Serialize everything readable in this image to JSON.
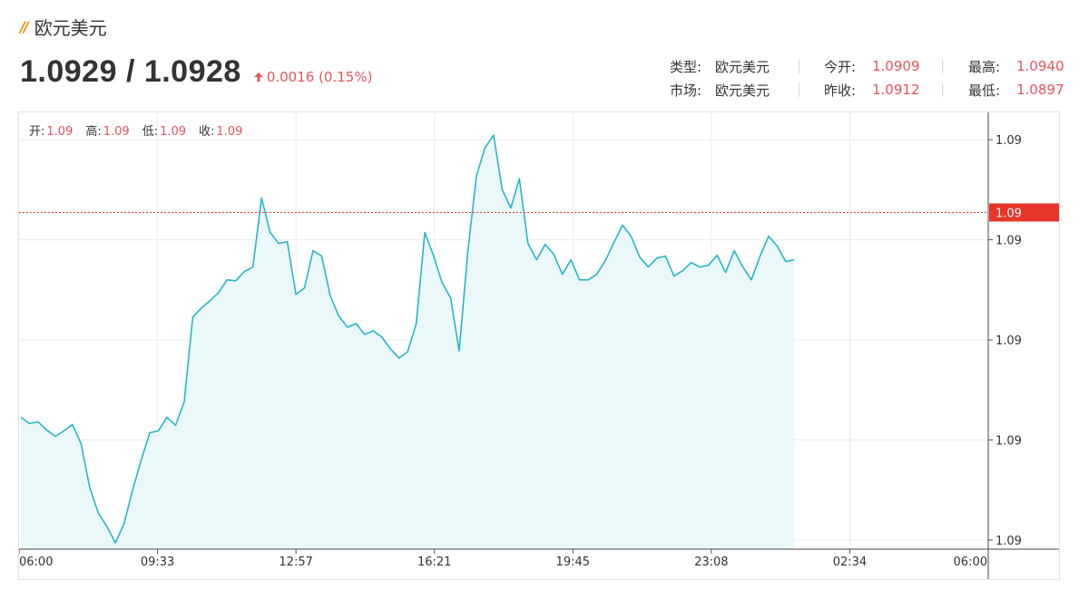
{
  "header": {
    "title": "欧元美元",
    "price": "1.0929 / 1.0928",
    "change": "0.0016 (0.15%)"
  },
  "info": {
    "type_label": "类型:",
    "type_value": "欧元美元",
    "market_label": "市场:",
    "market_value": "欧元美元",
    "open_label": "今开:",
    "open_value": "1.0909",
    "prevclose_label": "昨收:",
    "prevclose_value": "1.0912",
    "high_label": "最高:",
    "high_value": "1.0940",
    "low_label": "最低:",
    "low_value": "1.0897"
  },
  "ohlc": {
    "open_label": "开:",
    "open_value": "1.09",
    "high_label": "高:",
    "high_value": "1.09",
    "low_label": "低:",
    "low_value": "1.09",
    "close_label": "收:",
    "close_value": "1.09"
  },
  "colors": {
    "line": "#27b5c8",
    "fill": "#eaf8fa",
    "current": "#e8352b",
    "up": "#e8535b"
  },
  "chart_data": {
    "type": "area",
    "x_tick_labels": [
      "06:00",
      "09:33",
      "12:57",
      "16:21",
      "19:45",
      "23:08",
      "02:34",
      "06:00"
    ],
    "y_tick_labels": [
      "1.09",
      "1.09",
      "1.09",
      "1.09",
      "1.09"
    ],
    "y_ticks": [
      1.0936,
      1.0925,
      1.0914,
      1.0903,
      1.0892
    ],
    "ylim": [
      1.0891,
      1.0939
    ],
    "current_value": 1.0928,
    "current_label": "1.09",
    "series": [
      {
        "x": [
          0,
          1,
          2,
          3,
          4,
          5,
          6,
          7,
          8,
          9,
          10,
          11,
          12,
          13,
          14,
          15,
          16,
          17,
          18,
          19,
          20,
          21,
          22,
          23,
          24,
          25,
          26,
          27,
          28,
          29,
          30,
          31,
          32,
          33,
          34,
          35,
          36,
          37,
          38,
          39,
          40,
          41,
          42,
          43,
          44,
          45,
          46,
          47,
          48,
          49,
          50,
          51,
          52,
          53,
          54,
          55,
          56,
          57,
          58,
          59,
          60,
          61,
          62,
          63,
          64,
          65,
          66,
          67,
          68,
          69,
          70,
          71,
          72,
          73,
          74,
          75,
          76,
          77,
          78,
          79,
          80,
          81,
          82,
          83,
          84,
          85,
          86,
          87,
          88,
          89,
          90
        ],
        "y": [
          1.09055,
          1.09048,
          1.0905,
          1.09041,
          1.09034,
          1.0904,
          1.09047,
          1.09026,
          1.08978,
          1.0895,
          1.08935,
          1.08917,
          1.08938,
          1.08975,
          1.09008,
          1.09038,
          1.0904,
          1.09055,
          1.09046,
          1.09072,
          1.09165,
          1.09175,
          1.09183,
          1.09192,
          1.09206,
          1.09205,
          1.09215,
          1.0922,
          1.09296,
          1.09258,
          1.09246,
          1.09248,
          1.0919,
          1.09197,
          1.09238,
          1.09232,
          1.09188,
          1.09166,
          1.09154,
          1.09158,
          1.09146,
          1.0915,
          1.09143,
          1.0913,
          1.0912,
          1.09127,
          1.09158,
          1.09258,
          1.09233,
          1.09203,
          1.09186,
          1.09128,
          1.09237,
          1.0932,
          1.09351,
          1.09365,
          1.09305,
          1.09285,
          1.09317,
          1.09246,
          1.09228,
          1.09245,
          1.09234,
          1.09212,
          1.09228,
          1.09206,
          1.09206,
          1.09212,
          1.09227,
          1.09247,
          1.09266,
          1.09254,
          1.09231,
          1.0922,
          1.0923,
          1.09232,
          1.0921,
          1.09216,
          1.09225,
          1.0922,
          1.09222,
          1.09233,
          1.09214,
          1.09238,
          1.0922,
          1.09206,
          1.09232,
          1.09254,
          1.09243,
          1.09226,
          1.09228
        ]
      }
    ],
    "session_fraction_drawn": 0.8,
    "grid": true,
    "legend": "none"
  }
}
